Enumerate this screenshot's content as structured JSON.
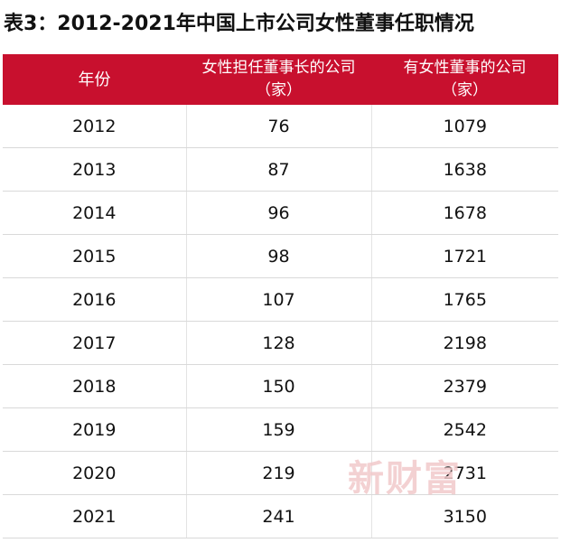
{
  "title": "表3：2012-2021年中国上市公司女性董事任职情况",
  "table": {
    "headers": [
      {
        "line1": "年份",
        "line2": ""
      },
      {
        "line1": "女性担任董事长的公司",
        "line2": "（家）"
      },
      {
        "line1": "有女性董事的公司",
        "line2": "（家）"
      }
    ],
    "rows": [
      {
        "year": "2012",
        "chair": "76",
        "director": "1079"
      },
      {
        "year": "2013",
        "chair": "87",
        "director": "1638"
      },
      {
        "year": "2014",
        "chair": "96",
        "director": "1678"
      },
      {
        "year": "2015",
        "chair": "98",
        "director": "1721"
      },
      {
        "year": "2016",
        "chair": "107",
        "director": "1765"
      },
      {
        "year": "2017",
        "chair": "128",
        "director": "2198"
      },
      {
        "year": "2018",
        "chair": "150",
        "director": "2379"
      },
      {
        "year": "2019",
        "chair": "159",
        "director": "2542"
      },
      {
        "year": "2020",
        "chair": "219",
        "director": "2731"
      },
      {
        "year": "2021",
        "chair": "241",
        "director": "3150"
      }
    ]
  },
  "watermark": "新财富",
  "colors": {
    "header_bg": "#c8102e",
    "header_text": "#ffffff",
    "watermark": "#f2c9cb"
  }
}
